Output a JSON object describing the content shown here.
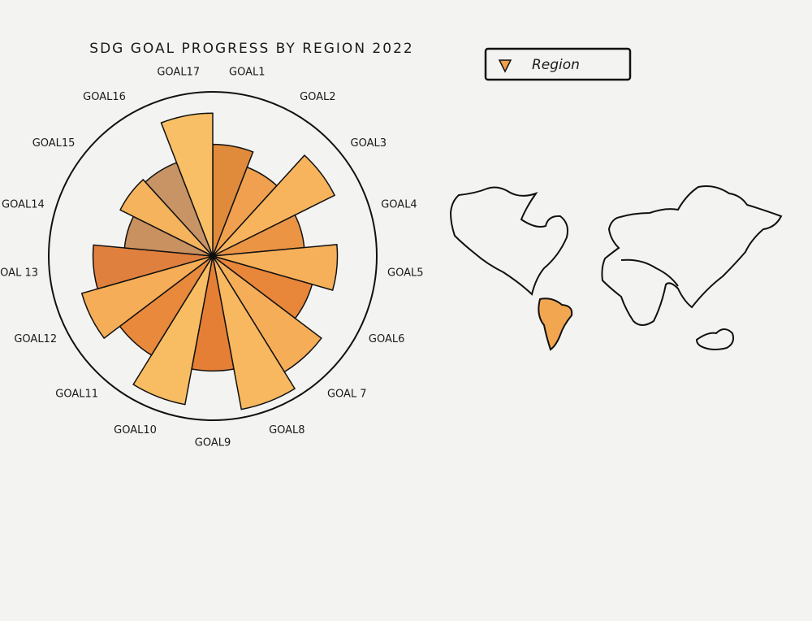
{
  "chart_data": {
    "type": "polar-bar",
    "title": "SDG GOAL PROGRESS BY REGION 2022",
    "categories": [
      "GOAL1",
      "GOAL2",
      "GOAL3",
      "GOAL4",
      "GOAL5",
      "GOAL6",
      "GOAL 7",
      "GOAL8",
      "GOAL9",
      "GOAL10",
      "GOAL11",
      "GOAL12",
      "GOAL 13",
      "GOAL14",
      "GOAL15",
      "GOAL16",
      "GOAL17"
    ],
    "values": [
      68,
      58,
      83,
      56,
      76,
      63,
      83,
      95,
      70,
      92,
      71,
      83,
      73,
      54,
      63,
      61,
      87
    ],
    "colors": [
      "#e08a3c",
      "#f0a04e",
      "#f7b45c",
      "#eb9444",
      "#f6b05a",
      "#e8863a",
      "#f5ad58",
      "#f7b860",
      "#e57f36",
      "#f8bd63",
      "#e8893c",
      "#f6ad57",
      "#e0803e",
      "#c99060",
      "#f5b35d",
      "#c89466",
      "#f8bf66"
    ],
    "rlim": [
      0,
      100
    ]
  },
  "controls": {
    "region_filter": "Region"
  }
}
